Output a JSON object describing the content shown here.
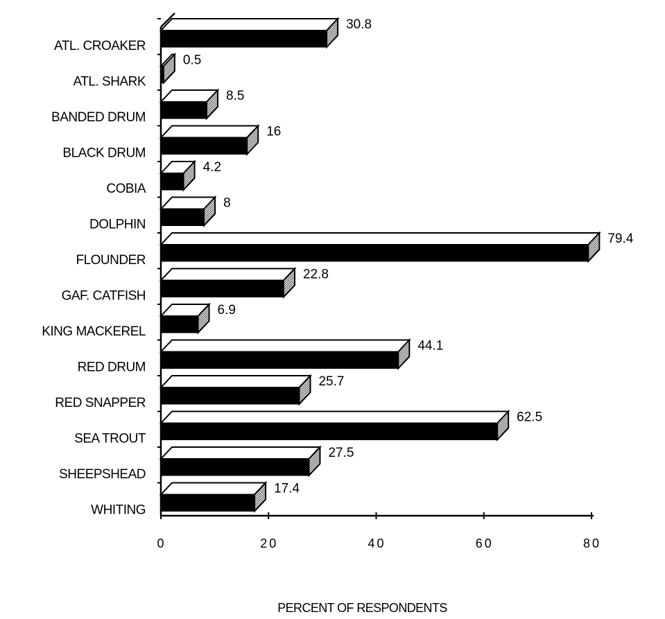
{
  "chart_data": {
    "type": "bar",
    "orientation": "horizontal",
    "style": "3d",
    "categories": [
      "ATL. CROAKER",
      "ATL. SHARK",
      "BANDED DRUM",
      "BLACK DRUM",
      "COBIA",
      "DOLPHIN",
      "FLOUNDER",
      "GAF. CATFISH",
      "KING MACKEREL",
      "RED DRUM",
      "RED SNAPPER",
      "SEA TROUT",
      "SHEEPSHEAD",
      "WHITING"
    ],
    "values": [
      30.8,
      0.5,
      8.5,
      16,
      4.2,
      8,
      79.4,
      22.8,
      6.9,
      44.1,
      25.7,
      62.5,
      27.5,
      17.4
    ],
    "value_labels": [
      "30.8",
      "0.5",
      "8.5",
      "16",
      "4.2",
      "8",
      "79.4",
      "22.8",
      "6.9",
      "44.1",
      "25.7",
      "62.5",
      "27.5",
      "17.4"
    ],
    "title": "",
    "xlabel": "PERCENT OF RESPONDENTS",
    "ylabel": "",
    "xlim": [
      0,
      80
    ],
    "xticks": [
      0,
      20,
      40,
      60,
      80
    ],
    "xtick_labels": [
      "0",
      "20",
      "40",
      "60",
      "80"
    ],
    "grid": false,
    "legend": "none",
    "colors": {
      "bar_front": "#000000",
      "bar_top": "#ffffff",
      "bar_side": "#9a9a9a",
      "outline": "#000000"
    }
  }
}
